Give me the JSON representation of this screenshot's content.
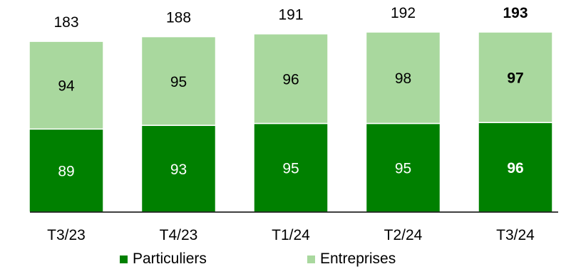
{
  "chart_data": {
    "type": "bar",
    "stacked": true,
    "categories": [
      "T3/23",
      "T4/23",
      "T1/24",
      "T2/24",
      "T3/24"
    ],
    "series": [
      {
        "name": "Particuliers",
        "values": [
          89,
          93,
          95,
          95,
          96
        ],
        "color": "#008000"
      },
      {
        "name": "Entreprises",
        "values": [
          94,
          95,
          96,
          98,
          97
        ],
        "color": "#A9D89E"
      }
    ],
    "totals": [
      183,
      188,
      191,
      192,
      193
    ],
    "bold_categories": [
      "T3/24"
    ],
    "ylim": [
      0,
      193
    ],
    "grid": false,
    "legend_position": "bottom"
  }
}
